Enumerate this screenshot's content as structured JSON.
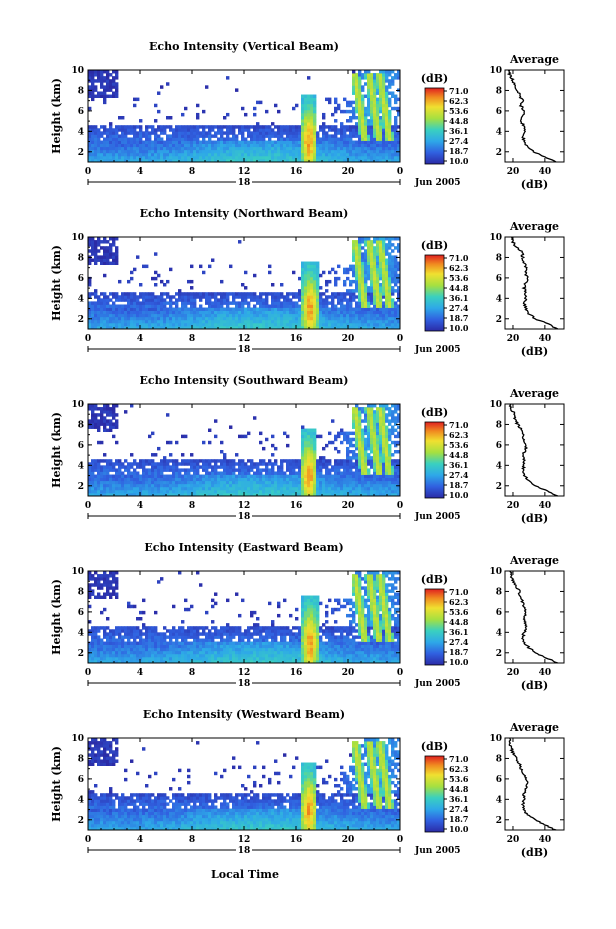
{
  "figure": {
    "ylabel": "Height (km)",
    "xlabel": "Local Time",
    "date_label": "Jun 2005",
    "colorbar_unit": "(dB)",
    "average_title": "Average",
    "average_xlabel": "(dB)"
  },
  "chart_data": [
    {
      "type": "heatmap",
      "title": "Echo Intensity (Vertical Beam)",
      "day_label": "18",
      "x_ticks": [
        "0",
        "4",
        "8",
        "12",
        "16",
        "20",
        "0"
      ],
      "xlim": [
        0,
        24
      ],
      "y_ticks": [
        "2",
        "4",
        "6",
        "8",
        "10"
      ],
      "ylim": [
        1,
        10
      ],
      "colorbar": {
        "ticks": [
          "71.0",
          "62.3",
          "53.6",
          "44.8",
          "36.1",
          "27.4",
          "18.7",
          "10.0"
        ],
        "range": [
          10.0,
          71.0
        ]
      },
      "average_profile": {
        "x_ticks": [
          "20",
          "40"
        ],
        "xlim": [
          15,
          52
        ],
        "heights": [
          1.0,
          1.5,
          2.0,
          2.5,
          3.0,
          3.5,
          4.0,
          4.5,
          5.0,
          5.5,
          6.0,
          6.5,
          7.0,
          7.5,
          8.0,
          8.5,
          9.0,
          9.5,
          10.0
        ],
        "values": [
          47,
          40,
          33,
          29,
          27,
          26,
          27,
          27,
          25,
          26,
          27,
          25,
          26,
          24,
          23,
          21,
          20,
          18,
          17
        ]
      }
    },
    {
      "type": "heatmap",
      "title": "Echo Intensity (Northward Beam)",
      "day_label": "18",
      "x_ticks": [
        "0",
        "4",
        "8",
        "12",
        "16",
        "20",
        "0"
      ],
      "xlim": [
        0,
        24
      ],
      "y_ticks": [
        "2",
        "4",
        "6",
        "8",
        "10"
      ],
      "ylim": [
        1,
        10
      ],
      "colorbar": {
        "ticks": [
          "71.0",
          "62.3",
          "53.6",
          "44.8",
          "36.1",
          "27.4",
          "18.7",
          "10.0"
        ],
        "range": [
          10.0,
          71.0
        ]
      },
      "average_profile": {
        "x_ticks": [
          "20",
          "40"
        ],
        "xlim": [
          15,
          52
        ],
        "heights": [
          1.0,
          1.5,
          2.0,
          2.5,
          3.0,
          3.5,
          4.0,
          4.5,
          5.0,
          5.5,
          6.0,
          6.5,
          7.0,
          7.5,
          8.0,
          8.5,
          9.0,
          9.5,
          10.0
        ],
        "values": [
          48,
          42,
          34,
          30,
          28,
          27,
          28,
          28,
          27,
          28,
          29,
          28,
          28,
          27,
          26,
          26,
          22,
          20,
          19
        ]
      }
    },
    {
      "type": "heatmap",
      "title": "Echo Intensity (Southward Beam)",
      "day_label": "18",
      "x_ticks": [
        "0",
        "4",
        "8",
        "12",
        "16",
        "20",
        "0"
      ],
      "xlim": [
        0,
        24
      ],
      "y_ticks": [
        "2",
        "4",
        "6",
        "8",
        "10"
      ],
      "ylim": [
        1,
        10
      ],
      "colorbar": {
        "ticks": [
          "71.0",
          "62.3",
          "53.6",
          "44.8",
          "36.1",
          "27.4",
          "18.7",
          "10.0"
        ],
        "range": [
          10.0,
          71.0
        ]
      },
      "average_profile": {
        "x_ticks": [
          "20",
          "40"
        ],
        "xlim": [
          15,
          52
        ],
        "heights": [
          1.0,
          1.5,
          2.0,
          2.5,
          3.0,
          3.5,
          4.0,
          4.5,
          5.0,
          5.5,
          6.0,
          6.5,
          7.0,
          7.5,
          8.0,
          8.5,
          9.0,
          9.5,
          10.0
        ],
        "values": [
          48,
          41,
          34,
          30,
          27,
          26,
          27,
          27,
          26,
          28,
          28,
          27,
          26,
          25,
          23,
          21,
          21,
          19,
          18
        ]
      }
    },
    {
      "type": "heatmap",
      "title": "Echo Intensity (Eastward Beam)",
      "day_label": "18",
      "x_ticks": [
        "0",
        "4",
        "8",
        "12",
        "16",
        "20",
        "0"
      ],
      "xlim": [
        0,
        24
      ],
      "y_ticks": [
        "2",
        "4",
        "6",
        "8",
        "10"
      ],
      "ylim": [
        1,
        10
      ],
      "colorbar": {
        "ticks": [
          "71.0",
          "62.3",
          "53.6",
          "44.8",
          "36.1",
          "27.4",
          "18.7",
          "10.0"
        ],
        "range": [
          10.0,
          71.0
        ]
      },
      "average_profile": {
        "x_ticks": [
          "20",
          "40"
        ],
        "xlim": [
          15,
          52
        ],
        "heights": [
          1.0,
          1.5,
          2.0,
          2.5,
          3.0,
          3.5,
          4.0,
          4.5,
          5.0,
          5.5,
          6.0,
          6.5,
          7.0,
          7.5,
          8.0,
          8.5,
          9.0,
          9.5,
          10.0
        ],
        "values": [
          48,
          41,
          34,
          30,
          27,
          26,
          27,
          28,
          28,
          27,
          28,
          27,
          26,
          24,
          24,
          22,
          20,
          19,
          18
        ]
      }
    },
    {
      "type": "heatmap",
      "title": "Echo Intensity (Westward Beam)",
      "day_label": "18",
      "x_ticks": [
        "0",
        "4",
        "8",
        "12",
        "16",
        "20",
        "0"
      ],
      "xlim": [
        0,
        24
      ],
      "y_ticks": [
        "2",
        "4",
        "6",
        "8",
        "10"
      ],
      "ylim": [
        1,
        10
      ],
      "colorbar": {
        "ticks": [
          "71.0",
          "62.3",
          "53.6",
          "44.8",
          "36.1",
          "27.4",
          "18.7",
          "10.0"
        ],
        "range": [
          10.0,
          71.0
        ]
      },
      "average_profile": {
        "x_ticks": [
          "20",
          "40"
        ],
        "xlim": [
          15,
          52
        ],
        "heights": [
          1.0,
          1.5,
          2.0,
          2.5,
          3.0,
          3.5,
          4.0,
          4.5,
          5.0,
          5.5,
          6.0,
          6.5,
          7.0,
          7.5,
          8.0,
          8.5,
          9.0,
          9.5,
          10.0
        ],
        "values": [
          47,
          40,
          34,
          29,
          27,
          26,
          27,
          27,
          28,
          29,
          28,
          27,
          25,
          24,
          22,
          20,
          19,
          18,
          18
        ]
      }
    }
  ]
}
